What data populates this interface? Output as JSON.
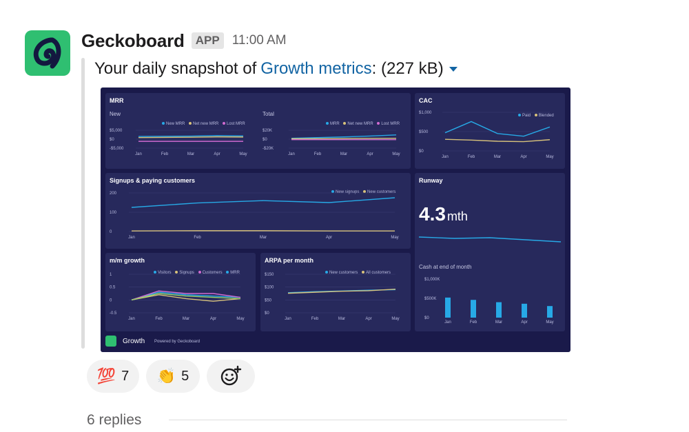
{
  "message": {
    "sender": "Geckoboard",
    "badge": "APP",
    "time": "11:00 AM",
    "prefix": "Your daily snapshot of",
    "link_text": "Growth metrics",
    "size_text": ": (227 kB)"
  },
  "dashboard": {
    "footer_name": "Growth",
    "footer_powered": "Powered by Geckoboard",
    "colors": {
      "background": "#1a1a4a",
      "panel": "#27295c",
      "blue": "#27a9e6",
      "yellow": "#d8c27b",
      "pink": "#d06bd0",
      "green": "#9bd36a"
    },
    "mrr": {
      "title": "MRR",
      "new": {
        "label": "New",
        "legend": [
          "New MRR",
          "Net new MRR",
          "Lost MRR"
        ],
        "yticks": [
          "$5,000",
          "$0",
          "-$5,000"
        ],
        "xticks": [
          "Jan",
          "Feb",
          "Mar",
          "Apr",
          "May"
        ]
      },
      "total": {
        "label": "Total",
        "legend": [
          "MRR",
          "Net new MRR",
          "Lost MRR"
        ],
        "yticks": [
          "$20K",
          "$0",
          "-$20K"
        ],
        "xticks": [
          "Jan",
          "Feb",
          "Mar",
          "Apr",
          "May"
        ]
      }
    },
    "cac": {
      "title": "CAC",
      "legend": [
        "Paid",
        "Blended"
      ],
      "yticks": [
        "$1,000",
        "$500",
        "$0"
      ],
      "xticks": [
        "Jan",
        "Feb",
        "Mar",
        "Apr",
        "May"
      ]
    },
    "signups": {
      "title": "Signups & paying customers",
      "legend": [
        "New signups",
        "New customers"
      ],
      "yticks": [
        "200",
        "100",
        "0"
      ],
      "xticks": [
        "Jan",
        "Feb",
        "Mar",
        "Apr",
        "May"
      ]
    },
    "runway": {
      "title": "Runway",
      "value": "4.3",
      "unit": "mth",
      "cash_title": "Cash at end of month",
      "yticks": [
        "$1,000K",
        "$500K",
        "$0"
      ],
      "xticks": [
        "Jan",
        "Feb",
        "Mar",
        "Apr",
        "May"
      ]
    },
    "mm": {
      "title": "m/m growth",
      "legend": [
        "Visitors",
        "Signups",
        "Customers",
        "MRR"
      ],
      "yticks": [
        "1",
        "0.5",
        "0",
        "-0.5"
      ],
      "xticks": [
        "Jan",
        "Feb",
        "Mar",
        "Apr",
        "May"
      ]
    },
    "arpa": {
      "title": "ARPA per month",
      "legend": [
        "New customers",
        "All customers"
      ],
      "yticks": [
        "$150",
        "$100",
        "$50",
        "$0"
      ],
      "xticks": [
        "Jan",
        "Feb",
        "Mar",
        "Apr",
        "May"
      ]
    }
  },
  "chart_data": [
    {
      "type": "line",
      "title": "MRR New",
      "x": [
        "Jan",
        "Feb",
        "Mar",
        "Apr",
        "May"
      ],
      "ylim": [
        -5000,
        5000
      ],
      "series": [
        {
          "name": "New MRR",
          "values": [
            1500,
            1600,
            1700,
            2000,
            1800
          ]
        },
        {
          "name": "Net new MRR",
          "values": [
            900,
            1000,
            1100,
            1300,
            1200
          ]
        },
        {
          "name": "Lost MRR",
          "values": [
            -1200,
            -1200,
            -1200,
            -1200,
            -1200
          ]
        }
      ]
    },
    {
      "type": "line",
      "title": "MRR Total",
      "x": [
        "Jan",
        "Feb",
        "Mar",
        "Apr",
        "May"
      ],
      "ylim": [
        -20000,
        20000
      ],
      "series": [
        {
          "name": "MRR",
          "values": [
            2000,
            3500,
            5000,
            7000,
            9500
          ]
        },
        {
          "name": "Net new MRR",
          "values": [
            1000,
            1200,
            1500,
            1800,
            2000
          ]
        },
        {
          "name": "Lost MRR",
          "values": [
            -1000,
            -1000,
            -1000,
            -1000,
            -1000
          ]
        }
      ]
    },
    {
      "type": "line",
      "title": "CAC",
      "x": [
        "Jan",
        "Feb",
        "Mar",
        "Apr",
        "May"
      ],
      "ylim": [
        0,
        1000
      ],
      "series": [
        {
          "name": "Paid",
          "values": [
            470,
            760,
            450,
            380,
            620
          ]
        },
        {
          "name": "Blended",
          "values": [
            300,
            280,
            250,
            240,
            290
          ]
        }
      ]
    },
    {
      "type": "line",
      "title": "Signups & paying customers",
      "x": [
        "Jan",
        "Feb",
        "Mar",
        "Apr",
        "May"
      ],
      "ylim": [
        0,
        200
      ],
      "series": [
        {
          "name": "New signups",
          "values": [
            125,
            148,
            160,
            150,
            175
          ]
        },
        {
          "name": "New customers",
          "values": [
            3,
            4,
            4,
            3,
            3
          ]
        }
      ]
    },
    {
      "type": "line",
      "title": "Runway",
      "x": [
        "Jan",
        "Feb",
        "Mar",
        "Apr",
        "May"
      ],
      "series": [
        {
          "values": [
            5.0,
            4.8,
            4.9,
            4.6,
            4.3
          ]
        }
      ]
    },
    {
      "type": "bar",
      "title": "Cash at end of month",
      "categories": [
        "Jan",
        "Feb",
        "Mar",
        "Apr",
        "May"
      ],
      "values": [
        520,
        460,
        400,
        360,
        300
      ],
      "ylim": [
        0,
        1000
      ]
    },
    {
      "type": "line",
      "title": "m/m growth",
      "x": [
        "Jan",
        "Feb",
        "Mar",
        "Apr",
        "May"
      ],
      "ylim": [
        -0.5,
        1
      ],
      "series": [
        {
          "name": "Visitors",
          "values": [
            0,
            0.3,
            0.2,
            0.15,
            0.1
          ]
        },
        {
          "name": "Signups",
          "values": [
            0,
            0.2,
            0.05,
            -0.05,
            0.05
          ]
        },
        {
          "name": "Customers",
          "values": [
            0,
            0.35,
            0.25,
            0.25,
            0.1
          ]
        },
        {
          "name": "MRR",
          "values": [
            0,
            0.25,
            0.15,
            0.1,
            0.05
          ]
        }
      ]
    },
    {
      "type": "line",
      "title": "ARPA per month",
      "x": [
        "Jan",
        "Feb",
        "Mar",
        "Apr",
        "May"
      ],
      "ylim": [
        0,
        150
      ],
      "series": [
        {
          "name": "New customers",
          "values": [
            78,
            82,
            85,
            88,
            90
          ]
        },
        {
          "name": "All customers",
          "values": [
            76,
            80,
            84,
            86,
            92
          ]
        }
      ]
    }
  ],
  "reactions": [
    {
      "emoji": "💯",
      "count": "7"
    },
    {
      "emoji": "👏",
      "count": "5"
    },
    {
      "emoji": "☺+"
    }
  ],
  "thread": {
    "replies": "6 replies"
  }
}
